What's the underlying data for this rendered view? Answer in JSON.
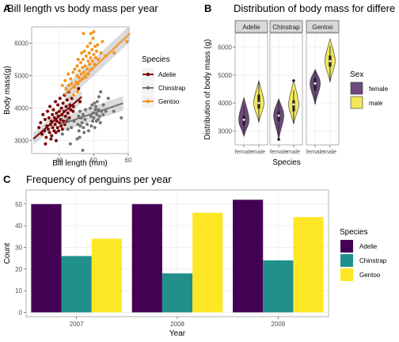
{
  "panels": {
    "a": {
      "tag": "A",
      "title": "Bill length vs body mass per year"
    },
    "b": {
      "tag": "B",
      "title": "Distribution of body mass for differe"
    },
    "c": {
      "tag": "C",
      "title": "Frequency of penguins per year"
    }
  },
  "colors": {
    "adelie_scatter": "#7b0000",
    "chinstrap_scatter": "#737373",
    "gentoo_scatter": "#f7931e",
    "female": "#6d4a7a",
    "male": "#f2e85a",
    "bar_adelie": "#440154",
    "bar_chinstrap": "#21908c",
    "bar_gentoo": "#fde725",
    "panel_bg": "#ffffff",
    "grid": "#ebebeb",
    "strip_bg": "#d9d9d9"
  },
  "chart_data": [
    {
      "type": "scatter",
      "title": "Bill length vs body mass per year",
      "xlabel": "Bill length (mm)",
      "ylabel": "Body mass(g)",
      "xlim": [
        32,
        60
      ],
      "ylim": [
        2600,
        6500
      ],
      "xticks": [
        40,
        50,
        60
      ],
      "yticks": [
        3000,
        4000,
        5000,
        6000
      ],
      "legend_title": "Species",
      "legend_position": "right",
      "series": [
        {
          "name": "Adelie",
          "fit": [
            [
              32.5,
              3050
            ],
            [
              46.5,
              4350
            ]
          ],
          "ci": 120,
          "points": [
            [
              34.1,
              3400
            ],
            [
              34.6,
              3550
            ],
            [
              35.0,
              3200
            ],
            [
              35.3,
              3800
            ],
            [
              35.7,
              3300
            ],
            [
              35.9,
              3650
            ],
            [
              36.2,
              3100
            ],
            [
              36.4,
              3450
            ],
            [
              36.6,
              3900
            ],
            [
              36.8,
              3350
            ],
            [
              37.0,
              3700
            ],
            [
              37.2,
              3250
            ],
            [
              37.3,
              4050
            ],
            [
              37.5,
              3500
            ],
            [
              37.7,
              3600
            ],
            [
              37.8,
              3150
            ],
            [
              38.0,
              3800
            ],
            [
              38.1,
              3400
            ],
            [
              38.3,
              3950
            ],
            [
              38.5,
              3300
            ],
            [
              38.6,
              3700
            ],
            [
              38.8,
              3500
            ],
            [
              38.9,
              4200
            ],
            [
              39.0,
              3250
            ],
            [
              39.2,
              3850
            ],
            [
              39.3,
              3600
            ],
            [
              39.5,
              3400
            ],
            [
              39.6,
              4100
            ],
            [
              39.7,
              3750
            ],
            [
              39.8,
              3300
            ],
            [
              40.0,
              3900
            ],
            [
              40.1,
              3550
            ],
            [
              40.2,
              4300
            ],
            [
              40.4,
              3650
            ],
            [
              40.5,
              3450
            ],
            [
              40.6,
              4000
            ],
            [
              40.8,
              3800
            ],
            [
              40.9,
              3350
            ],
            [
              41.1,
              4150
            ],
            [
              41.2,
              3600
            ],
            [
              41.4,
              3900
            ],
            [
              41.5,
              4400
            ],
            [
              41.6,
              3500
            ],
            [
              41.8,
              3750
            ],
            [
              42.0,
              4050
            ],
            [
              42.2,
              3600
            ],
            [
              42.3,
              4250
            ],
            [
              42.5,
              3850
            ],
            [
              42.7,
              4500
            ],
            [
              42.9,
              3700
            ],
            [
              43.1,
              4100
            ],
            [
              43.3,
              3950
            ],
            [
              43.6,
              4300
            ],
            [
              44.0,
              3900
            ],
            [
              44.1,
              4050
            ],
            [
              45.6,
              4600
            ],
            [
              46.0,
              4200
            ],
            [
              36.0,
              2900
            ],
            [
              37.6,
              3050
            ],
            [
              39.1,
              3000
            ]
          ]
        },
        {
          "name": "Chinstrap",
          "fit": [
            [
              40.5,
              3500
            ],
            [
              58.5,
              4150
            ]
          ],
          "ci": 140,
          "points": [
            [
              40.9,
              3200
            ],
            [
              42.4,
              3650
            ],
            [
              42.5,
              3350
            ],
            [
              43.2,
              2900
            ],
            [
              43.5,
              3400
            ],
            [
              44.3,
              3600
            ],
            [
              45.2,
              3050
            ],
            [
              45.4,
              3500
            ],
            [
              45.6,
              3750
            ],
            [
              45.7,
              3300
            ],
            [
              46.0,
              3900
            ],
            [
              46.1,
              3450
            ],
            [
              46.4,
              3700
            ],
            [
              46.6,
              3550
            ],
            [
              46.8,
              2700
            ],
            [
              46.9,
              3800
            ],
            [
              47.0,
              3400
            ],
            [
              47.5,
              3650
            ],
            [
              47.6,
              3950
            ],
            [
              48.1,
              3500
            ],
            [
              48.5,
              3300
            ],
            [
              49.0,
              4000
            ],
            [
              49.2,
              3750
            ],
            [
              49.3,
              3450
            ],
            [
              49.5,
              4100
            ],
            [
              49.7,
              3600
            ],
            [
              49.8,
              3850
            ],
            [
              50.0,
              3700
            ],
            [
              50.2,
              4150
            ],
            [
              50.3,
              3400
            ],
            [
              50.5,
              3950
            ],
            [
              50.6,
              4050
            ],
            [
              50.8,
              3600
            ],
            [
              50.9,
              3800
            ],
            [
              51.0,
              4200
            ],
            [
              51.3,
              3650
            ],
            [
              51.4,
              3950
            ],
            [
              51.5,
              4350
            ],
            [
              51.7,
              3750
            ],
            [
              51.9,
              3550
            ],
            [
              52.0,
              4500
            ],
            [
              52.2,
              3900
            ],
            [
              52.7,
              3800
            ],
            [
              52.8,
              4100
            ],
            [
              53.5,
              3900
            ],
            [
              54.2,
              4300
            ],
            [
              55.8,
              3900
            ],
            [
              58.0,
              3700
            ],
            [
              45.9,
              3100
            ],
            [
              47.2,
              3250
            ]
          ]
        },
        {
          "name": "Gentoo",
          "fit": [
            [
              41.5,
              4400
            ],
            [
              60.5,
              6300
            ]
          ],
          "ci": 160,
          "points": [
            [
              40.9,
              4700
            ],
            [
              41.7,
              4850
            ],
            [
              42.0,
              4600
            ],
            [
              42.6,
              5050
            ],
            [
              42.8,
              4700
            ],
            [
              43.3,
              4900
            ],
            [
              43.6,
              4750
            ],
            [
              44.0,
              5100
            ],
            [
              44.4,
              4650
            ],
            [
              44.5,
              5200
            ],
            [
              44.9,
              4800
            ],
            [
              45.1,
              5000
            ],
            [
              45.2,
              5300
            ],
            [
              45.4,
              4750
            ],
            [
              45.5,
              5500
            ],
            [
              45.7,
              4950
            ],
            [
              45.8,
              5150
            ],
            [
              46.1,
              4850
            ],
            [
              46.2,
              5400
            ],
            [
              46.4,
              5050
            ],
            [
              46.5,
              5700
            ],
            [
              46.7,
              5250
            ],
            [
              46.8,
              4900
            ],
            [
              46.9,
              5500
            ],
            [
              47.2,
              5100
            ],
            [
              47.3,
              5750
            ],
            [
              47.5,
              5300
            ],
            [
              47.7,
              4950
            ],
            [
              47.8,
              5600
            ],
            [
              48.1,
              5200
            ],
            [
              48.2,
              5900
            ],
            [
              48.4,
              5450
            ],
            [
              48.5,
              5050
            ],
            [
              48.7,
              5700
            ],
            [
              48.8,
              5350
            ],
            [
              49.0,
              6000
            ],
            [
              49.1,
              5550
            ],
            [
              49.3,
              5200
            ],
            [
              49.5,
              5800
            ],
            [
              49.6,
              5450
            ],
            [
              49.8,
              6150
            ],
            [
              50.0,
              5650
            ],
            [
              50.2,
              5350
            ],
            [
              50.4,
              5900
            ],
            [
              50.5,
              5550
            ],
            [
              50.8,
              5750
            ],
            [
              51.1,
              5950
            ],
            [
              51.3,
              5500
            ],
            [
              52.1,
              5700
            ],
            [
              52.5,
              6050
            ],
            [
              53.4,
              5600
            ],
            [
              55.9,
              5700
            ],
            [
              59.6,
              6050
            ],
            [
              47.0,
              6300
            ],
            [
              49.2,
              6300
            ],
            [
              50.0,
              6350
            ],
            [
              44.2,
              4400
            ],
            [
              45.3,
              4500
            ]
          ]
        }
      ]
    },
    {
      "type": "violin",
      "title": "Distribution of body mass for differe",
      "xlabel": "Species",
      "ylabel": "Distribution of body mass (g)",
      "ylim": [
        2500,
        6500
      ],
      "yticks": [
        3000,
        4000,
        5000,
        6000
      ],
      "facets": [
        "Adelie",
        "Chinstrap",
        "Gentoo"
      ],
      "x_tick_labels": [
        "female",
        "male"
      ],
      "legend_title": "Sex",
      "legend_position": "right",
      "groups": [
        {
          "facet": "Adelie",
          "sex": "female",
          "min": 2850,
          "q1": 3200,
          "median": 3400,
          "q3": 3550,
          "max": 3900,
          "lo": 2800,
          "hi": 4200
        },
        {
          "facet": "Adelie",
          "sex": "male",
          "min": 3350,
          "q1": 3800,
          "median": 4000,
          "q3": 4300,
          "max": 4750,
          "lo": 3300,
          "hi": 4800
        },
        {
          "facet": "Chinstrap",
          "sex": "female",
          "min": 2800,
          "q1": 3350,
          "median": 3550,
          "q3": 3700,
          "max": 4150,
          "lo": 2700,
          "hi": 4150,
          "outlier": 2700
        },
        {
          "facet": "Chinstrap",
          "sex": "male",
          "min": 3250,
          "q1": 3700,
          "median": 3950,
          "q3": 4100,
          "max": 4450,
          "lo": 3250,
          "hi": 4800,
          "outlier": 4800
        },
        {
          "facet": "Gentoo",
          "sex": "female",
          "min": 3950,
          "q1": 4450,
          "median": 4700,
          "q3": 4900,
          "max": 5200,
          "lo": 3950,
          "hi": 5200
        },
        {
          "facet": "Gentoo",
          "sex": "male",
          "min": 4750,
          "q1": 5300,
          "median": 5500,
          "q3": 5700,
          "max": 6050,
          "lo": 4750,
          "hi": 6300
        }
      ],
      "legend": [
        {
          "name": "female"
        },
        {
          "name": "male"
        }
      ]
    },
    {
      "type": "bar",
      "title": "Frequency of penguins per year",
      "xlabel": "Year",
      "ylabel": "Count",
      "categories": [
        "2007",
        "2008",
        "2009"
      ],
      "ylim": [
        0,
        55
      ],
      "yticks": [
        0,
        10,
        20,
        30,
        40,
        50
      ],
      "legend_title": "Species",
      "legend_position": "right",
      "series": [
        {
          "name": "Adelie",
          "values": [
            50,
            50,
            52
          ]
        },
        {
          "name": "Chinstrap",
          "values": [
            26,
            18,
            24
          ]
        },
        {
          "name": "Gentoo",
          "values": [
            34,
            46,
            44
          ]
        }
      ]
    }
  ]
}
